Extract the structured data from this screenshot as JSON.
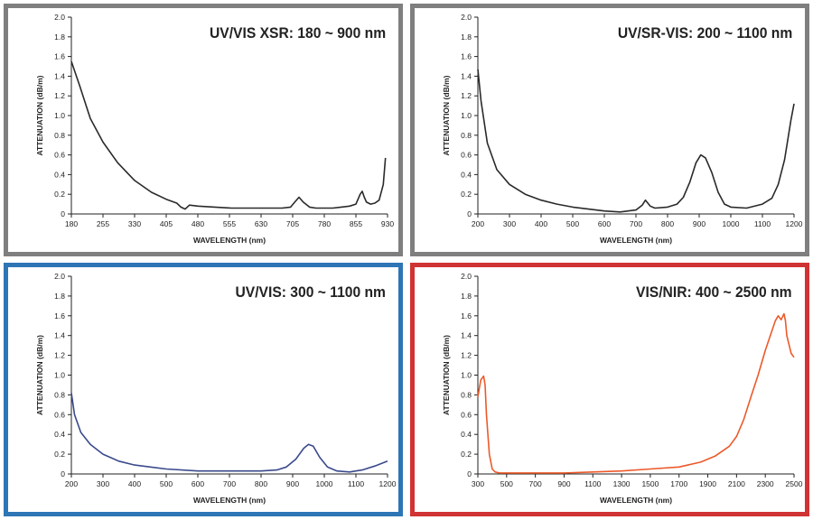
{
  "chart_data": [
    {
      "type": "line",
      "title": "UV/VIS XSR: 180 ~ 900 nm",
      "frame_color": "#7f7f7f",
      "line_color": "#2a2a2a",
      "xlabel": "WAVELENGTH (nm)",
      "ylabel": "ATTENUATION (dB/m)",
      "xlim": [
        180,
        930
      ],
      "ylim": [
        0,
        2.0
      ],
      "xticks": [
        180,
        255,
        330,
        405,
        480,
        555,
        630,
        705,
        780,
        855,
        930
      ],
      "yticks": [
        "0",
        "0.2",
        "0.4",
        "0.6",
        "0.8",
        "1.0",
        "1.2",
        "1.4",
        "1.6",
        "1.8",
        "2.0"
      ],
      "grid": false,
      "series": [
        {
          "x": [
            180,
            200,
            225,
            255,
            290,
            330,
            370,
            405,
            430,
            440,
            450,
            460,
            480,
            520,
            560,
            600,
            640,
            680,
            700,
            710,
            720,
            730,
            745,
            760,
            780,
            800,
            820,
            840,
            855,
            865,
            870,
            875,
            880,
            890,
            900,
            910,
            920,
            925
          ],
          "y": [
            1.55,
            1.3,
            0.97,
            0.73,
            0.52,
            0.34,
            0.22,
            0.15,
            0.11,
            0.07,
            0.05,
            0.09,
            0.08,
            0.07,
            0.06,
            0.06,
            0.06,
            0.06,
            0.07,
            0.12,
            0.17,
            0.12,
            0.07,
            0.06,
            0.06,
            0.06,
            0.07,
            0.08,
            0.1,
            0.2,
            0.23,
            0.17,
            0.12,
            0.1,
            0.11,
            0.14,
            0.3,
            0.57
          ]
        }
      ]
    },
    {
      "type": "line",
      "title": "UV/SR-VIS: 200 ~ 1100 nm",
      "frame_color": "#7f7f7f",
      "line_color": "#2a2a2a",
      "xlabel": "WAVELENGTH (nm)",
      "ylabel": "ATTENUATION (dB/m)",
      "xlim": [
        200,
        1200
      ],
      "ylim": [
        0,
        2.0
      ],
      "xticks": [
        200,
        300,
        400,
        500,
        600,
        700,
        800,
        900,
        1000,
        1100,
        1200
      ],
      "yticks": [
        "0",
        "0.2",
        "0.4",
        "0.6",
        "0.8",
        "1.0",
        "1.2",
        "1.4",
        "1.6",
        "1.8",
        "2.0"
      ],
      "grid": false,
      "series": [
        {
          "x": [
            200,
            210,
            230,
            260,
            300,
            350,
            400,
            450,
            500,
            550,
            600,
            650,
            700,
            720,
            730,
            745,
            760,
            800,
            830,
            850,
            870,
            890,
            905,
            920,
            940,
            960,
            980,
            1000,
            1050,
            1100,
            1130,
            1150,
            1170,
            1190,
            1200
          ],
          "y": [
            1.47,
            1.15,
            0.72,
            0.45,
            0.3,
            0.2,
            0.14,
            0.1,
            0.07,
            0.05,
            0.03,
            0.02,
            0.04,
            0.09,
            0.14,
            0.08,
            0.06,
            0.07,
            0.1,
            0.17,
            0.32,
            0.52,
            0.6,
            0.57,
            0.42,
            0.22,
            0.1,
            0.07,
            0.06,
            0.1,
            0.16,
            0.3,
            0.55,
            0.95,
            1.12
          ]
        }
      ]
    },
    {
      "type": "line",
      "title": "UV/VIS: 300 ~ 1100 nm",
      "frame_color": "#2e75b6",
      "line_color": "#3a4a8c",
      "xlabel": "WAVELENGTH (nm)",
      "ylabel": "ATTENUATION (dB/m)",
      "xlim": [
        200,
        1200
      ],
      "ylim": [
        0,
        2.0
      ],
      "xticks": [
        200,
        300,
        400,
        500,
        600,
        700,
        800,
        900,
        1000,
        1100,
        1200
      ],
      "yticks": [
        "0",
        "0.2",
        "0.4",
        "0.6",
        "0.8",
        "1.0",
        "1.2",
        "1.4",
        "1.6",
        "1.8",
        "2.0"
      ],
      "grid": false,
      "series": [
        {
          "x": [
            200,
            210,
            230,
            260,
            300,
            350,
            400,
            450,
            500,
            600,
            700,
            800,
            850,
            880,
            910,
            935,
            950,
            965,
            985,
            1010,
            1040,
            1080,
            1120,
            1160,
            1200
          ],
          "y": [
            0.82,
            0.6,
            0.42,
            0.3,
            0.2,
            0.13,
            0.09,
            0.07,
            0.05,
            0.03,
            0.03,
            0.03,
            0.04,
            0.07,
            0.15,
            0.26,
            0.3,
            0.28,
            0.17,
            0.07,
            0.03,
            0.02,
            0.04,
            0.08,
            0.13
          ]
        }
      ]
    },
    {
      "type": "line",
      "title": "VIS/NIR: 400 ~ 2500 nm",
      "frame_color": "#d03333",
      "line_color": "#ec5a2a",
      "xlabel": "WAVELENGTH (nm)",
      "ylabel": "ATTENUATION (dB/m)",
      "xlim": [
        300,
        2500
      ],
      "ylim": [
        0,
        2.0
      ],
      "xticks": [
        300,
        500,
        700,
        900,
        1100,
        1300,
        1500,
        1700,
        1900,
        2100,
        2300,
        2500
      ],
      "yticks": [
        "0",
        "0.2",
        "0.4",
        "0.6",
        "0.8",
        "1.0",
        "1.2",
        "1.4",
        "1.6",
        "1.8",
        "2.0"
      ],
      "grid": false,
      "series": [
        {
          "x": [
            300,
            320,
            340,
            350,
            360,
            380,
            400,
            420,
            450,
            500,
            700,
            900,
            1100,
            1300,
            1500,
            1700,
            1850,
            1950,
            2050,
            2100,
            2150,
            2200,
            2250,
            2300,
            2340,
            2370,
            2390,
            2410,
            2430,
            2440,
            2450,
            2470,
            2480,
            2500
          ],
          "y": [
            0.78,
            0.95,
            0.99,
            0.9,
            0.6,
            0.2,
            0.05,
            0.02,
            0.01,
            0.01,
            0.01,
            0.01,
            0.02,
            0.03,
            0.05,
            0.07,
            0.12,
            0.18,
            0.28,
            0.38,
            0.55,
            0.78,
            1.0,
            1.25,
            1.42,
            1.55,
            1.6,
            1.56,
            1.62,
            1.55,
            1.4,
            1.28,
            1.22,
            1.18
          ]
        }
      ]
    }
  ]
}
